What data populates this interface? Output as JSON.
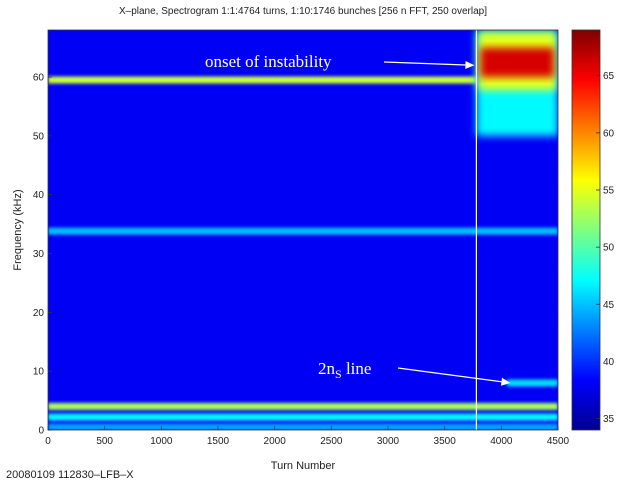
{
  "chart_data": {
    "type": "heatmap",
    "title": "X–plane, Spectrogram 1:1:4764 turns, 1:10:1746 bunches [256 n FFT, 250 overlap]",
    "xlabel": "Turn Number",
    "ylabel": "Frequency (kHz)",
    "xlim": [
      0,
      4500
    ],
    "ylim": [
      0,
      68
    ],
    "x_ticks": [
      0,
      500,
      1000,
      1500,
      2000,
      2500,
      3000,
      3500,
      4000,
      4500
    ],
    "y_ticks": [
      0,
      10,
      20,
      30,
      40,
      50,
      60
    ],
    "colorbar": {
      "min": 34,
      "max": 69,
      "ticks": [
        35,
        40,
        45,
        50,
        55,
        60,
        65
      ],
      "colormap": "jet"
    },
    "background_level": 38,
    "onset_turn": 3780,
    "bands": [
      {
        "y": 59.5,
        "x_start": 0,
        "x_end": 3780,
        "level": 54
      },
      {
        "y": 33.8,
        "x_start": 0,
        "x_end": 4500,
        "level": 45
      },
      {
        "y": 4,
        "x_start": 0,
        "x_end": 4500,
        "level": 53
      },
      {
        "y": 2.2,
        "x_start": 0,
        "x_end": 4500,
        "level": 47
      },
      {
        "y": 0.5,
        "x_start": 0,
        "x_end": 4500,
        "level": 44
      },
      {
        "y": 8,
        "x_start": 4050,
        "x_end": 4500,
        "level": 46
      }
    ],
    "instability_region": {
      "x_start": 3780,
      "x_end": 4500,
      "y_start": 50,
      "y_end": 68,
      "peak_level": 66,
      "peak_y": 62.5
    },
    "annotations": [
      {
        "text": "onset of instability",
        "target_x": 3780,
        "target_y": 62
      },
      {
        "text_main": "2n",
        "text_sub": "S",
        "text_after": " line",
        "target_x": 4080,
        "target_y": 8
      }
    ]
  },
  "footer_label": "20080109 112830–LFB–X",
  "colors": {
    "line_marker": "#ffffff"
  }
}
